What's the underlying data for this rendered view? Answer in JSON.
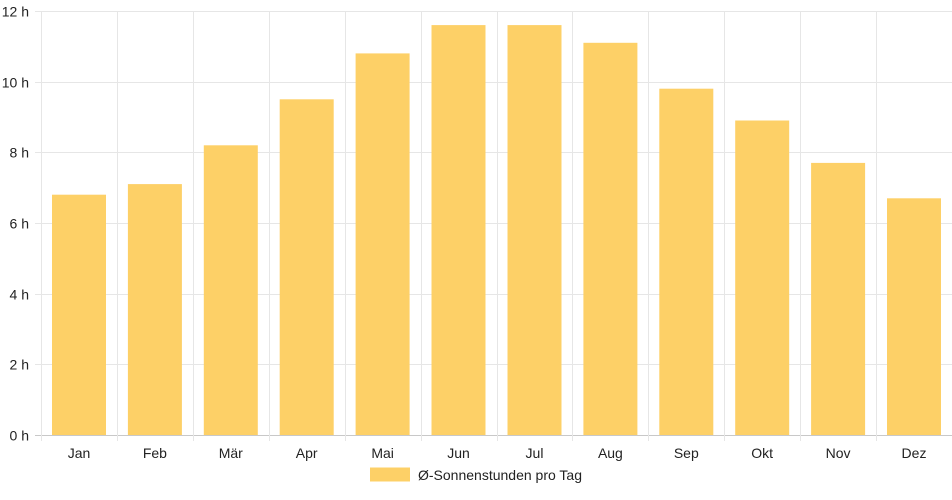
{
  "chart_data": {
    "type": "bar",
    "categories": [
      "Jan",
      "Feb",
      "Mär",
      "Apr",
      "Mai",
      "Jun",
      "Jul",
      "Aug",
      "Sep",
      "Okt",
      "Nov",
      "Dez"
    ],
    "series": [
      {
        "name": "Ø-Sonnenstunden pro Tag",
        "values": [
          6.8,
          7.1,
          8.2,
          9.5,
          10.8,
          11.6,
          11.6,
          11.1,
          9.8,
          8.9,
          7.7,
          6.7
        ],
        "color": "#fdd067"
      }
    ],
    "ylim": [
      0,
      12
    ],
    "yticks": [
      "0 h",
      "2 h",
      "4 h",
      "6 h",
      "8 h",
      "10 h",
      "12 h"
    ],
    "grid": true,
    "legend_position": "bottom",
    "title": "",
    "xlabel": "",
    "ylabel": ""
  }
}
